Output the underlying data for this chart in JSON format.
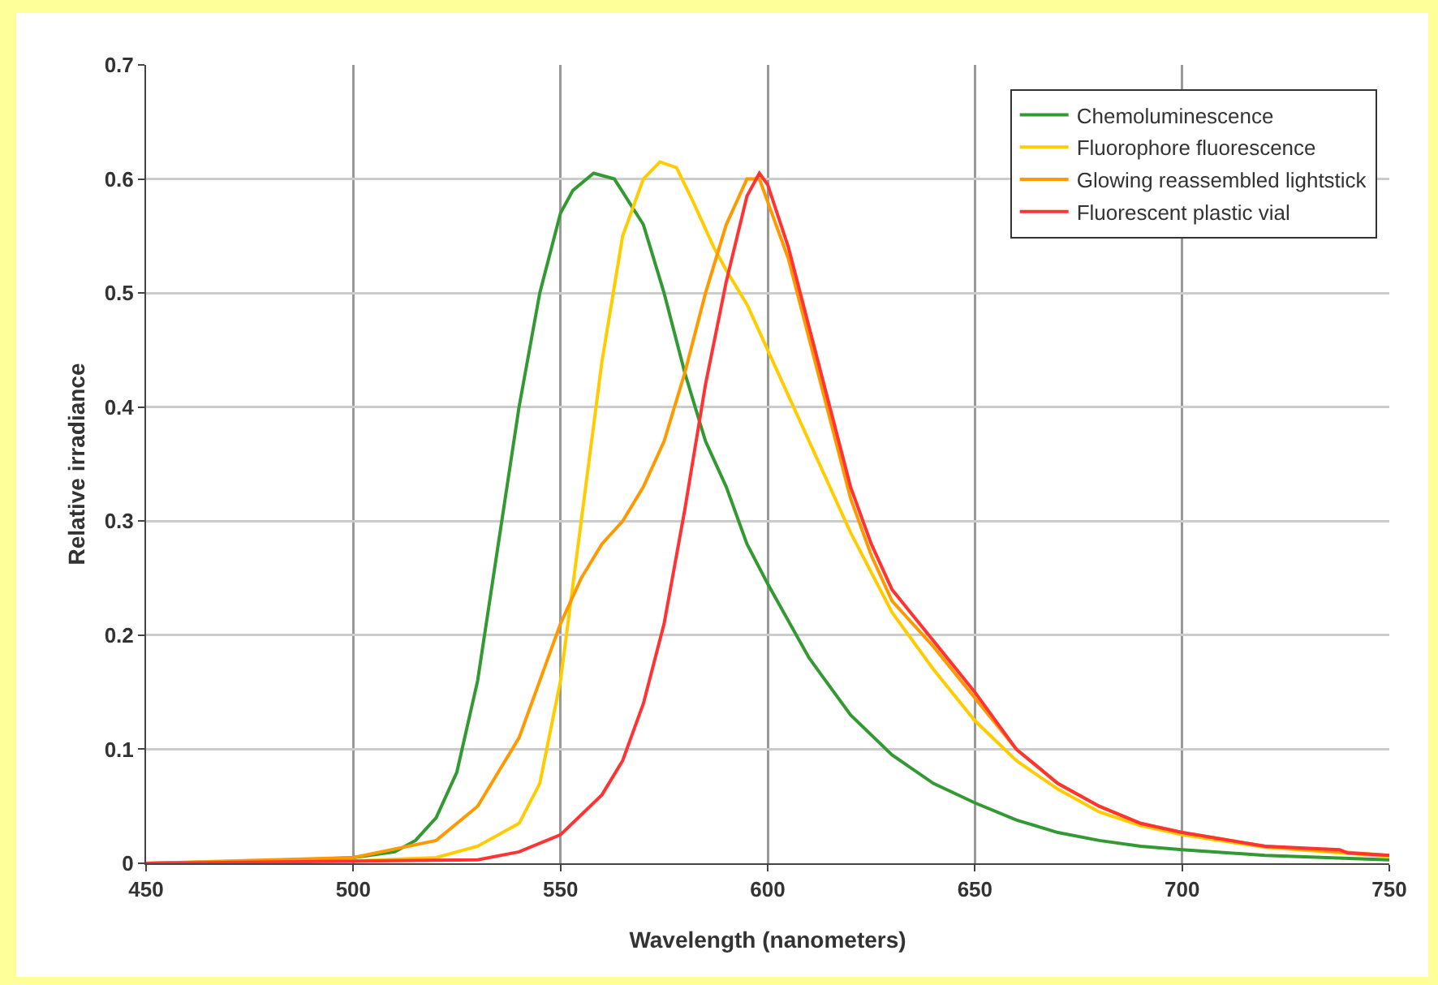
{
  "chart_data": {
    "type": "line",
    "xlabel": "Wavelength (nanometers)",
    "ylabel": "Relative irradiance",
    "xlim": [
      450,
      750
    ],
    "ylim": [
      0,
      0.7
    ],
    "xticks": [
      450,
      500,
      550,
      600,
      650,
      700,
      750
    ],
    "yticks": [
      0,
      0.1,
      0.2,
      0.3,
      0.4,
      0.5,
      0.6,
      0.7
    ],
    "grid": true,
    "legend": "top right",
    "marker": "none",
    "line_style": "solid",
    "series": [
      {
        "name": "Chemoluminescence",
        "color": "#339933",
        "x": [
          450,
          480,
          500,
          510,
          515,
          520,
          525,
          530,
          535,
          540,
          545,
          550,
          553,
          558,
          563,
          570,
          575,
          580,
          585,
          590,
          595,
          600,
          610,
          620,
          630,
          640,
          650,
          660,
          670,
          680,
          690,
          700,
          720,
          750
        ],
        "values": [
          0,
          0.002,
          0.005,
          0.01,
          0.02,
          0.04,
          0.08,
          0.16,
          0.28,
          0.4,
          0.5,
          0.57,
          0.59,
          0.605,
          0.6,
          0.56,
          0.5,
          0.43,
          0.37,
          0.33,
          0.28,
          0.245,
          0.18,
          0.13,
          0.095,
          0.07,
          0.053,
          0.038,
          0.027,
          0.02,
          0.015,
          0.012,
          0.007,
          0.003
        ]
      },
      {
        "name": "Fluorophore fluorescence",
        "color": "#ffcc00",
        "x": [
          450,
          500,
          520,
          530,
          540,
          545,
          550,
          555,
          560,
          565,
          570,
          574,
          578,
          582,
          587,
          590,
          595,
          600,
          605,
          610,
          615,
          620,
          625,
          630,
          640,
          650,
          660,
          670,
          680,
          690,
          700,
          720,
          750
        ],
        "values": [
          0,
          0.002,
          0.005,
          0.015,
          0.035,
          0.07,
          0.16,
          0.3,
          0.44,
          0.55,
          0.6,
          0.615,
          0.61,
          0.58,
          0.54,
          0.52,
          0.49,
          0.45,
          0.41,
          0.37,
          0.33,
          0.29,
          0.255,
          0.22,
          0.17,
          0.125,
          0.09,
          0.065,
          0.045,
          0.033,
          0.025,
          0.014,
          0.006
        ]
      },
      {
        "name": "Glowing reassembled lightstick",
        "color": "#ff9900",
        "x": [
          450,
          500,
          520,
          530,
          540,
          545,
          550,
          555,
          560,
          565,
          570,
          575,
          580,
          585,
          590,
          595,
          598,
          600,
          605,
          610,
          615,
          620,
          625,
          630,
          640,
          650,
          660,
          670,
          680,
          690,
          700,
          720,
          750
        ],
        "values": [
          0,
          0.005,
          0.02,
          0.05,
          0.11,
          0.16,
          0.21,
          0.25,
          0.28,
          0.3,
          0.33,
          0.37,
          0.43,
          0.5,
          0.56,
          0.6,
          0.6,
          0.58,
          0.53,
          0.46,
          0.39,
          0.32,
          0.27,
          0.23,
          0.19,
          0.145,
          0.1,
          0.07,
          0.05,
          0.035,
          0.027,
          0.015,
          0.007
        ]
      },
      {
        "name": "Fluorescent plastic vial",
        "color": "#ff3333",
        "x": [
          450,
          530,
          540,
          550,
          560,
          565,
          570,
          575,
          580,
          585,
          590,
          595,
          598,
          600,
          605,
          610,
          615,
          620,
          625,
          630,
          640,
          650,
          660,
          670,
          680,
          690,
          700,
          720,
          738,
          740,
          750
        ],
        "values": [
          0,
          0.003,
          0.01,
          0.025,
          0.06,
          0.09,
          0.14,
          0.21,
          0.31,
          0.42,
          0.51,
          0.585,
          0.605,
          0.595,
          0.54,
          0.47,
          0.4,
          0.33,
          0.28,
          0.24,
          0.195,
          0.15,
          0.1,
          0.07,
          0.05,
          0.035,
          0.027,
          0.015,
          0.012,
          0.009,
          0.007
        ]
      }
    ]
  }
}
